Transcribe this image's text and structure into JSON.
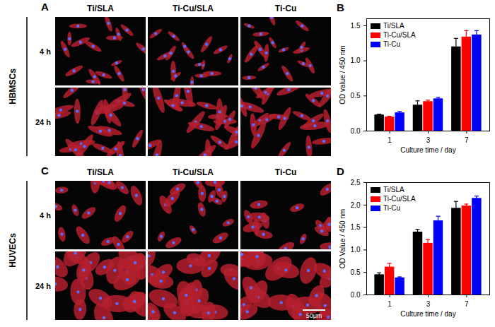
{
  "image_panels": [
    {
      "letter": "A",
      "row_group": "HBMSCs",
      "columns": [
        "Ti/SLA",
        "Ti-Cu/SLA",
        "Ti-Cu"
      ],
      "rows": [
        "4 h",
        "24 h"
      ]
    },
    {
      "letter": "C",
      "row_group": "HUVECs",
      "columns": [
        "Ti/SLA",
        "Ti-Cu/SLA",
        "Ti-Cu"
      ],
      "rows": [
        "4 h",
        "24 h"
      ],
      "scale_bar": "50μm"
    }
  ],
  "chart_data": [
    {
      "panel": "B",
      "type": "bar",
      "categories": [
        "1",
        "3",
        "7"
      ],
      "x_label": "Culture time / day",
      "y_label": "OD value / 450 nm",
      "ylim": [
        0,
        1.6
      ],
      "yticks": [
        {
          "value": 0,
          "label": "0.0"
        },
        0.5,
        {
          "value": 1,
          "label": "1.0"
        },
        1.5
      ],
      "legend": "top-left",
      "series": [
        {
          "name": "Ti/SLA",
          "color": "#000000",
          "values": [
            0.23,
            0.37,
            1.2
          ],
          "errors": [
            0.01,
            0.06,
            0.12
          ]
        },
        {
          "name": "Ti-Cu/SLA",
          "color": "#ff0000",
          "values": [
            0.2,
            0.42,
            1.34
          ],
          "errors": [
            0.01,
            0.02,
            0.09
          ]
        },
        {
          "name": "Ti-Cu",
          "color": "#0000ff",
          "values": [
            0.26,
            0.46,
            1.37
          ],
          "errors": [
            0.02,
            0.02,
            0.06
          ]
        }
      ]
    },
    {
      "panel": "D",
      "type": "bar",
      "categories": [
        "1",
        "3",
        "7"
      ],
      "x_label": "Culture time / day",
      "y_label": "OD Value / 450 nm",
      "ylim": [
        0,
        2.5
      ],
      "yticks": [
        {
          "value": 0,
          "label": "0.0"
        },
        0.5,
        {
          "value": 1,
          "label": "1.0"
        },
        1.5,
        {
          "value": 2,
          "label": "2.0"
        },
        2.5
      ],
      "legend": "top-left",
      "series": [
        {
          "name": "Ti/SLA",
          "color": "#000000",
          "values": [
            0.45,
            1.4,
            1.93
          ],
          "errors": [
            0.04,
            0.06,
            0.15
          ]
        },
        {
          "name": "Ti-Cu/SLA",
          "color": "#ff0000",
          "values": [
            0.62,
            1.15,
            1.98
          ],
          "errors": [
            0.08,
            0.08,
            0.04
          ]
        },
        {
          "name": "Ti-Cu",
          "color": "#0000ff",
          "values": [
            0.38,
            1.65,
            2.15
          ],
          "errors": [
            0.02,
            0.1,
            0.05
          ]
        }
      ]
    }
  ]
}
